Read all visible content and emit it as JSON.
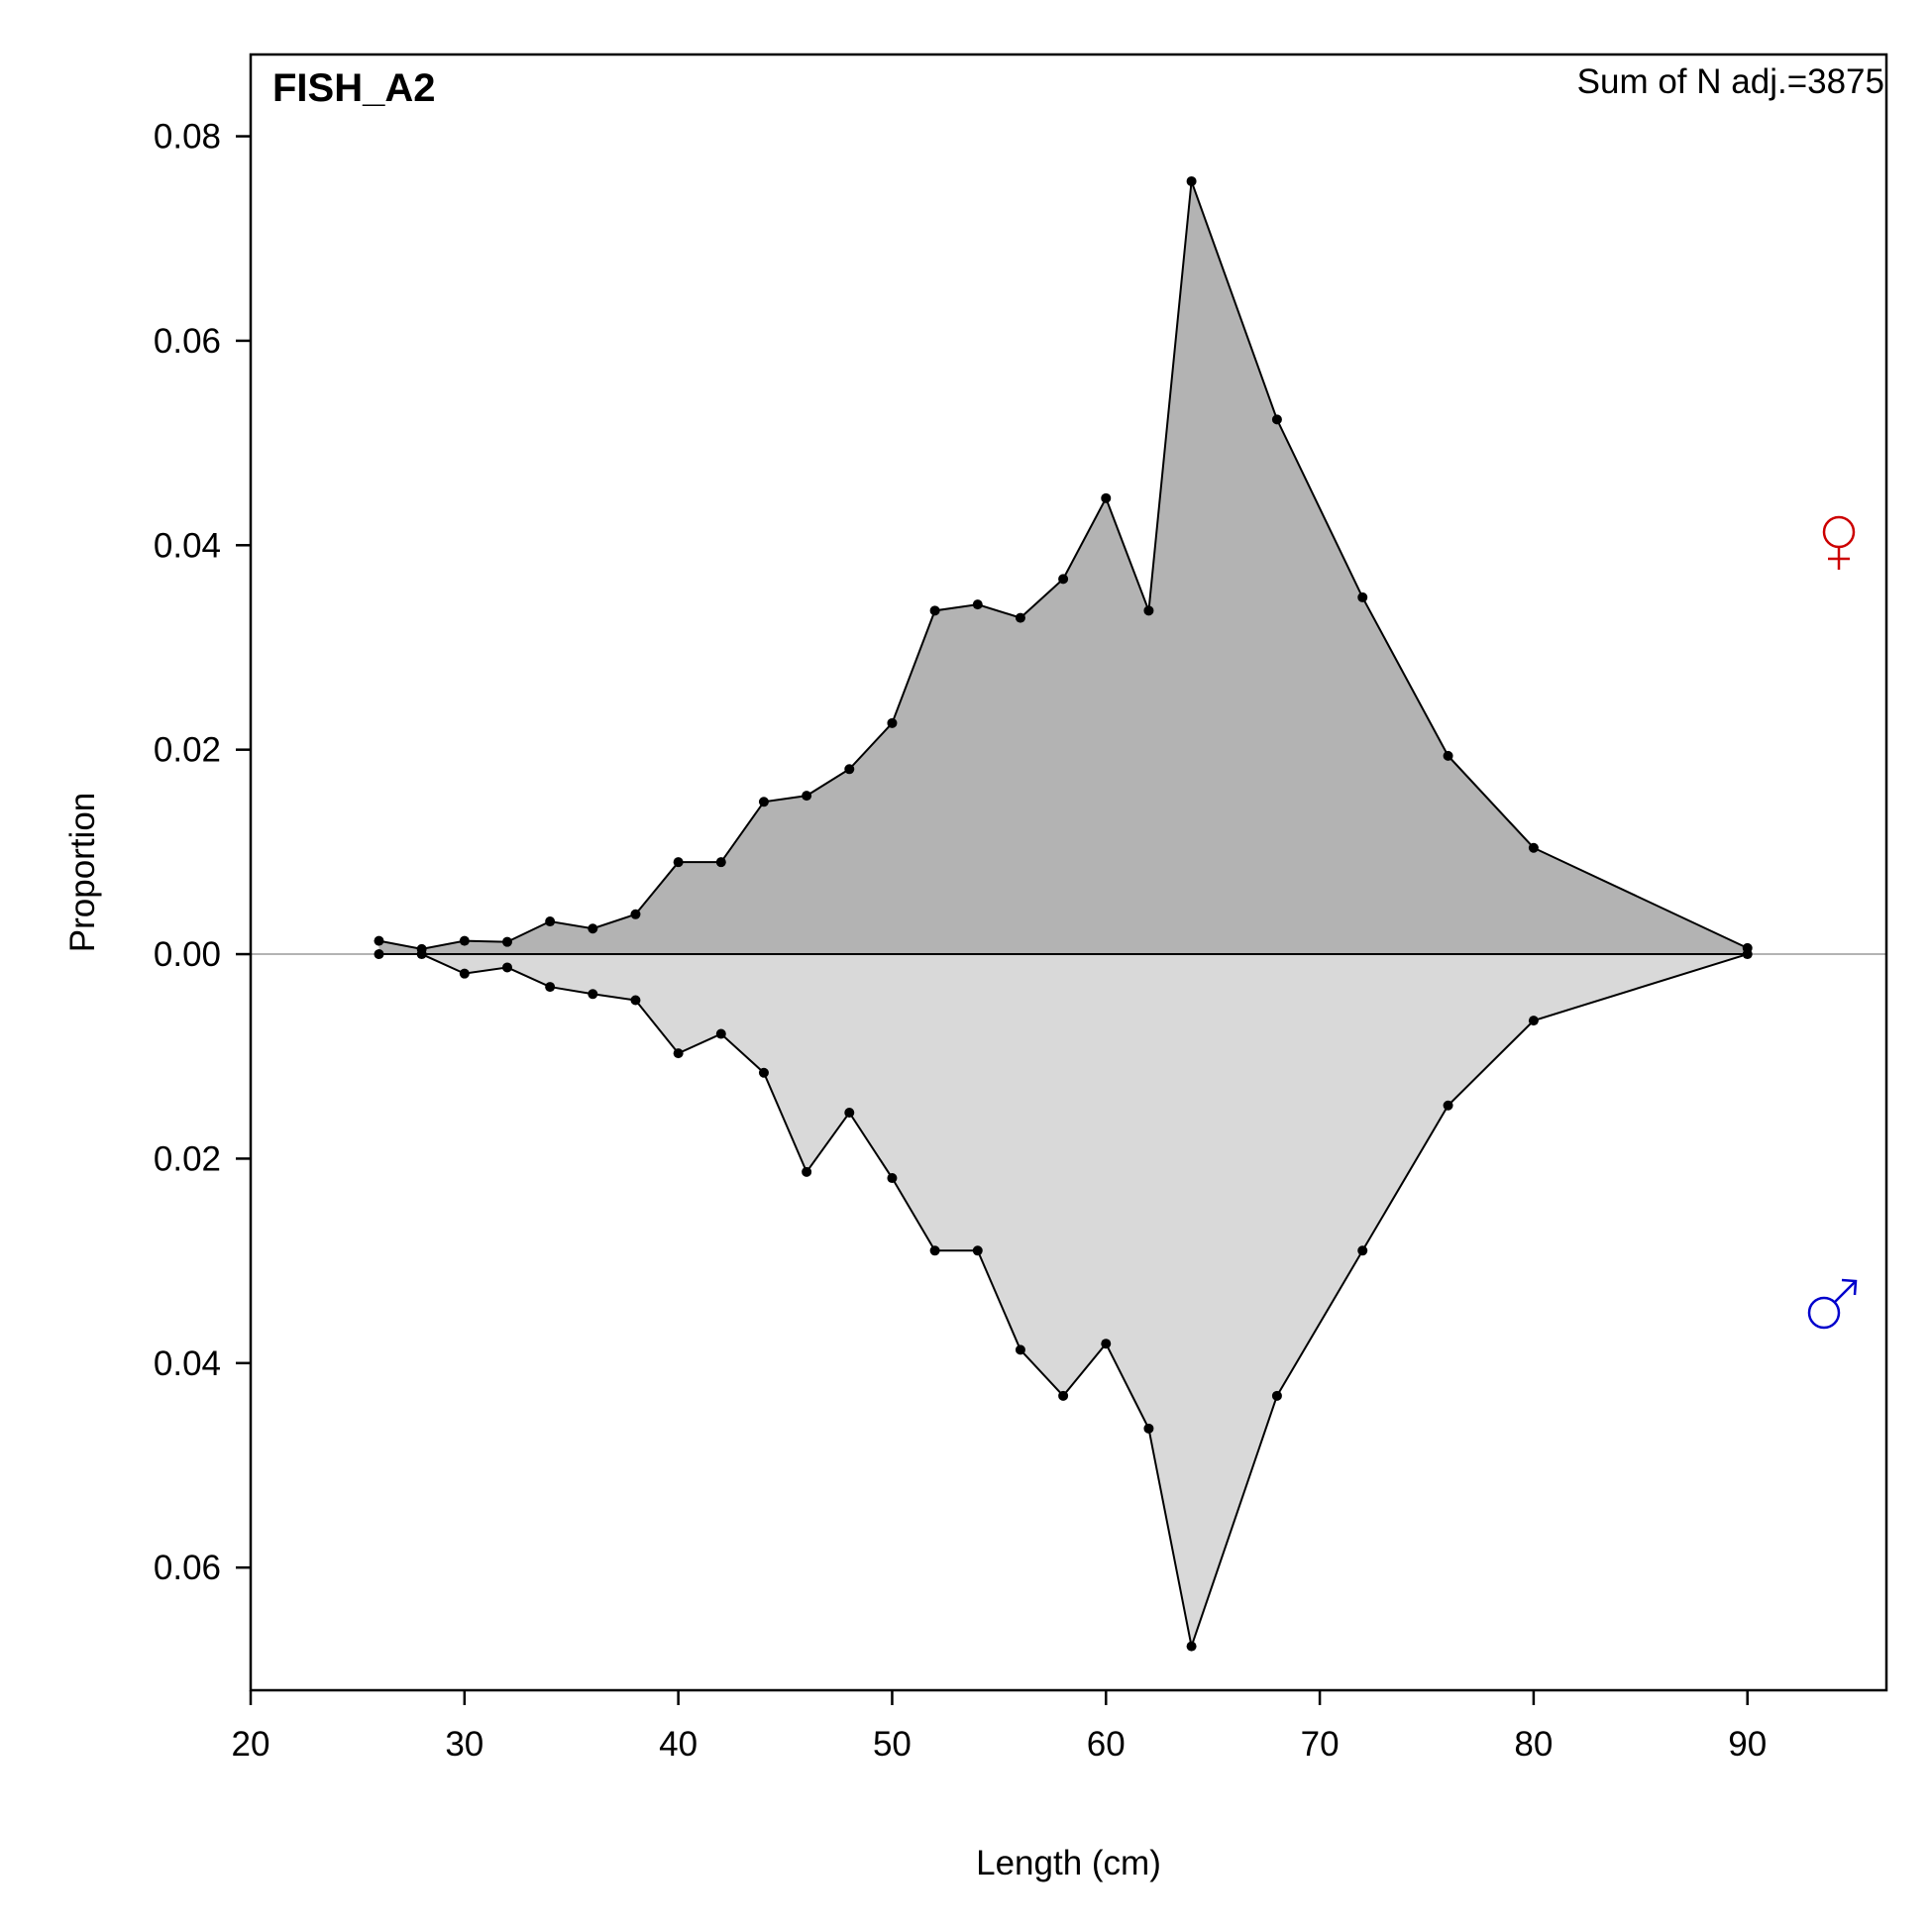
{
  "chart_data": {
    "type": "area",
    "title": "FISH_A2",
    "annotation": "Sum of N adj.=3875",
    "xlabel": "Length (cm)",
    "ylabel": "Proportion",
    "xlim": [
      20,
      96.5
    ],
    "ylim": [
      -0.072,
      0.088
    ],
    "x_ticks": [
      20,
      30,
      40,
      50,
      60,
      70,
      80,
      90
    ],
    "y_ticks": [
      {
        "value": 0.08,
        "label": "0.08"
      },
      {
        "value": 0.06,
        "label": "0.06"
      },
      {
        "value": 0.04,
        "label": "0.04"
      },
      {
        "value": 0.02,
        "label": "0.02"
      },
      {
        "value": 0.0,
        "label": "0.00"
      },
      {
        "value": -0.02,
        "label": "0.02"
      },
      {
        "value": -0.04,
        "label": "0.04"
      },
      {
        "value": -0.06,
        "label": "0.06"
      }
    ],
    "x": [
      26,
      28,
      30,
      32,
      34,
      36,
      38,
      40,
      42,
      44,
      46,
      48,
      50,
      52,
      54,
      56,
      58,
      60,
      62,
      64,
      68,
      72,
      76,
      80,
      90
    ],
    "series": [
      {
        "symbol": "♀",
        "color": "#cc0000",
        "fill": "#b3b3b3",
        "side": "above",
        "values": [
          0.0013,
          0.0005,
          0.0013,
          0.0012,
          0.0032,
          0.0025,
          0.0039,
          0.009,
          0.009,
          0.0149,
          0.0155,
          0.0181,
          0.0226,
          0.0336,
          0.0342,
          0.0329,
          0.0367,
          0.0446,
          0.0336,
          0.0756,
          0.0523,
          0.0349,
          0.0194,
          0.0104,
          0.0006
        ]
      },
      {
        "symbol": "♂",
        "color": "#0000cc",
        "fill": "#d9d9d9",
        "side": "below",
        "values": [
          0.0,
          0.0,
          0.0019,
          0.0013,
          0.0032,
          0.0039,
          0.0045,
          0.0097,
          0.0078,
          0.0116,
          0.0213,
          0.0155,
          0.0219,
          0.029,
          0.029,
          0.0387,
          0.0432,
          0.0381,
          0.0464,
          0.0677,
          0.0432,
          0.029,
          0.0148,
          0.0065,
          0.0
        ]
      }
    ],
    "grid": false,
    "zero_line_color": "#b3b3b3"
  }
}
